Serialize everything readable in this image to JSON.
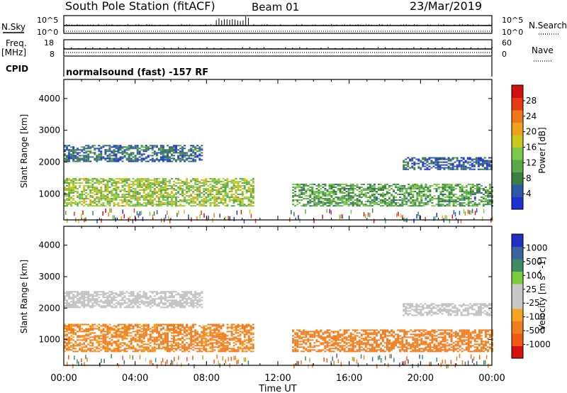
{
  "header": {
    "station": "South Pole Station (fitACF)",
    "beam": "Beam 01",
    "date": "23/Mar/2019"
  },
  "strips": {
    "nsky_label": "N.Sky",
    "nsearch_label": "N.Search",
    "noise_ticks": [
      "10^5",
      "10^0"
    ],
    "freq_label": "Freq.",
    "freq_unit": "[MHz]",
    "freq_ticks": [
      "18",
      "8"
    ],
    "nave_label": "Nave",
    "nave_ticks": [
      "60",
      "0"
    ],
    "cpid_label": "CPID",
    "cpid_text": "normalsound (fast) -157 RF"
  },
  "colors": {
    "power": [
      "#1f2fd6",
      "#2b58a8",
      "#3b7f3f",
      "#59a84a",
      "#7bc84a",
      "#c8c81e",
      "#f0a21e",
      "#f07818",
      "#e83a14",
      "#d01010"
    ],
    "velocity": [
      "#d81010",
      "#f05a14",
      "#f07d1e",
      "#f5a41e",
      "#c8c8c8",
      "#c8c8c8",
      "#7ccc3c",
      "#3c8c64",
      "#3c64a0",
      "#2030c0"
    ],
    "ground_scatter": "#c0c0c0"
  },
  "chart_data": [
    {
      "type": "heatmap",
      "title": "",
      "quantity": "Power",
      "unit": "dB",
      "xlabel": "Time UT",
      "ylabel": "Slant Range [km]",
      "xticks": [
        "00:00",
        "04:00",
        "08:00",
        "12:00",
        "16:00",
        "20:00",
        "00:00"
      ],
      "xlim_hours": [
        0,
        24
      ],
      "yticks": [
        1000,
        2000,
        3000,
        4000
      ],
      "ylim": [
        180,
        4600
      ],
      "colorbar_label": "Power [dB]",
      "colorbar_ticks": [
        4,
        8,
        12,
        16,
        20,
        24,
        28
      ],
      "colorbar_range": [
        0,
        32
      ],
      "regions": [
        {
          "name": "upper-echo",
          "t": [
            0.0,
            7.8
          ],
          "range": [
            2000,
            2500
          ],
          "level": 6
        },
        {
          "name": "main-echo-early",
          "t": [
            0.0,
            10.6
          ],
          "range": [
            600,
            1500
          ],
          "level": 15
        },
        {
          "name": "main-echo-late",
          "t": [
            12.8,
            24.0
          ],
          "range": [
            600,
            1300
          ],
          "level": 11
        },
        {
          "name": "upper-echo-late",
          "t": [
            19.0,
            24.0
          ],
          "range": [
            1750,
            2150
          ],
          "level": 5
        }
      ]
    },
    {
      "type": "heatmap",
      "title": "",
      "quantity": "Velocity",
      "unit": "m s^-1",
      "xlabel": "Time UT",
      "ylabel": "Slant Range [km]",
      "xticks": [
        "00:00",
        "04:00",
        "08:00",
        "12:00",
        "16:00",
        "20:00",
        "00:00"
      ],
      "xlim_hours": [
        0,
        24
      ],
      "yticks": [
        1000,
        2000,
        3000,
        4000
      ],
      "ylim": [
        180,
        4600
      ],
      "colorbar_label": "Velocity [m s^-1]",
      "colorbar_ticks": [
        -1000,
        -500,
        -100,
        -25,
        25,
        100,
        500,
        1000
      ],
      "regions": [
        {
          "name": "upper-echo",
          "t": [
            0.0,
            7.8
          ],
          "range": [
            2000,
            2500
          ],
          "velocity": 0
        },
        {
          "name": "main-echo-early",
          "t": [
            0.0,
            10.6
          ],
          "range": [
            600,
            1500
          ],
          "velocity": -200
        },
        {
          "name": "main-echo-late",
          "t": [
            12.8,
            24.0
          ],
          "range": [
            600,
            1300
          ],
          "velocity": -300
        },
        {
          "name": "upper-echo-late",
          "t": [
            19.0,
            24.0
          ],
          "range": [
            1750,
            2150
          ],
          "velocity": 0
        }
      ]
    }
  ]
}
